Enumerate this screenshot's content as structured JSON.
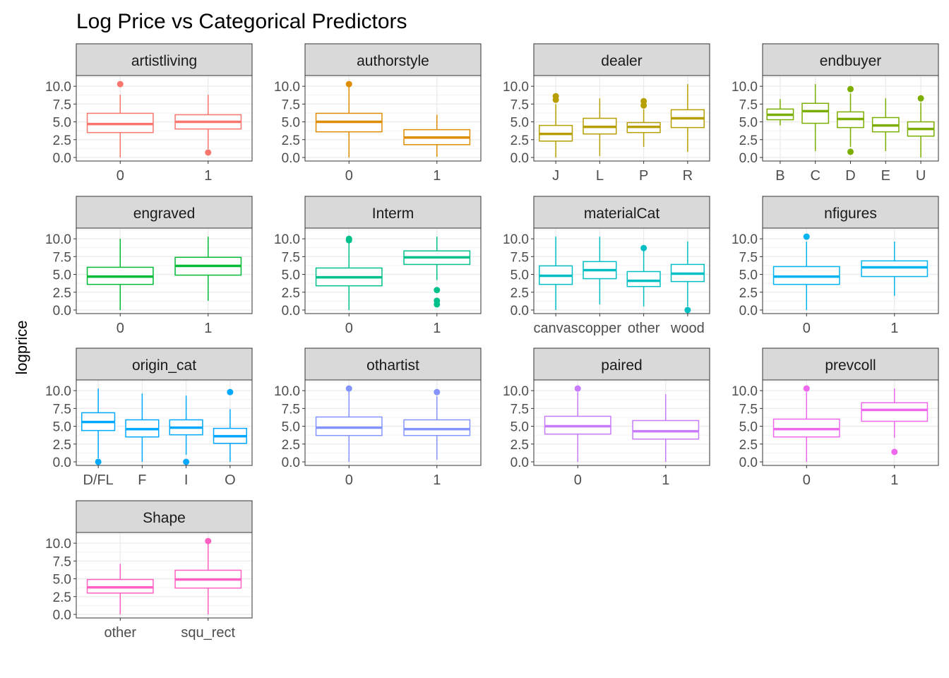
{
  "chart_data": {
    "type": "boxplot",
    "title": "Log Price vs Categorical Predictors",
    "xlabel": "",
    "ylabel": "logprice",
    "ylim": [
      -0.5,
      11.5
    ],
    "yticks": [
      0.0,
      2.5,
      5.0,
      7.5,
      10.0
    ],
    "ytick_labels": [
      "0.0",
      "2.5",
      "5.0",
      "7.5",
      "10.0"
    ],
    "grid": true,
    "legend": "none",
    "panels": [
      {
        "name": "artistliving",
        "color": "#F8766D",
        "categories": [
          "0",
          "1"
        ],
        "boxes": [
          {
            "min": 0.0,
            "q1": 3.5,
            "median": 4.7,
            "q3": 6.2,
            "max": 8.8,
            "outliers": [
              10.3
            ]
          },
          {
            "min": 1.2,
            "q1": 4.0,
            "median": 5.0,
            "q3": 6.0,
            "max": 8.8,
            "outliers": [
              0.7
            ]
          }
        ]
      },
      {
        "name": "authorstyle",
        "color": "#DE8C00",
        "categories": [
          "0",
          "1"
        ],
        "boxes": [
          {
            "min": 0.0,
            "q1": 3.6,
            "median": 5.0,
            "q3": 6.2,
            "max": 9.9,
            "outliers": [
              10.3
            ]
          },
          {
            "min": 0.1,
            "q1": 1.8,
            "median": 2.8,
            "q3": 3.9,
            "max": 6.0,
            "outliers": []
          }
        ]
      },
      {
        "name": "dealer",
        "color": "#B79F00",
        "categories": [
          "J",
          "L",
          "P",
          "R"
        ],
        "boxes": [
          {
            "min": 0.0,
            "q1": 2.3,
            "median": 3.3,
            "q3": 4.5,
            "max": 7.5,
            "outliers": [
              8.1,
              8.6
            ]
          },
          {
            "min": 0.2,
            "q1": 3.3,
            "median": 4.3,
            "q3": 5.5,
            "max": 8.3,
            "outliers": []
          },
          {
            "min": 1.5,
            "q1": 3.5,
            "median": 4.3,
            "q3": 4.9,
            "max": 6.8,
            "outliers": [
              7.3,
              7.9
            ]
          },
          {
            "min": 0.8,
            "q1": 4.2,
            "median": 5.5,
            "q3": 6.7,
            "max": 10.3,
            "outliers": []
          }
        ]
      },
      {
        "name": "endbuyer",
        "color": "#7CAE00",
        "categories": [
          "B",
          "C",
          "D",
          "E",
          "U"
        ],
        "boxes": [
          {
            "min": 4.5,
            "q1": 5.3,
            "median": 6.0,
            "q3": 6.8,
            "max": 8.2,
            "outliers": []
          },
          {
            "min": 0.9,
            "q1": 4.8,
            "median": 6.5,
            "q3": 7.6,
            "max": 10.3,
            "outliers": []
          },
          {
            "min": 1.5,
            "q1": 4.2,
            "median": 5.4,
            "q3": 6.4,
            "max": 9.0,
            "outliers": [
              9.6,
              0.8
            ]
          },
          {
            "min": 0.9,
            "q1": 3.6,
            "median": 4.5,
            "q3": 5.6,
            "max": 8.3,
            "outliers": []
          },
          {
            "min": 0.0,
            "q1": 3.0,
            "median": 4.0,
            "q3": 5.0,
            "max": 7.7,
            "outliers": [
              8.3
            ]
          }
        ]
      },
      {
        "name": "engraved",
        "color": "#00BA38",
        "categories": [
          "0",
          "1"
        ],
        "boxes": [
          {
            "min": 0.0,
            "q1": 3.6,
            "median": 4.7,
            "q3": 6.0,
            "max": 10.0,
            "outliers": []
          },
          {
            "min": 1.3,
            "q1": 4.9,
            "median": 6.2,
            "q3": 7.4,
            "max": 10.3,
            "outliers": []
          }
        ]
      },
      {
        "name": "Interm",
        "color": "#00C08B",
        "categories": [
          "0",
          "1"
        ],
        "boxes": [
          {
            "min": 0.0,
            "q1": 3.4,
            "median": 4.6,
            "q3": 5.9,
            "max": 9.5,
            "outliers": [
              9.8,
              10.0
            ]
          },
          {
            "min": 4.2,
            "q1": 6.4,
            "median": 7.4,
            "q3": 8.3,
            "max": 10.3,
            "outliers": [
              2.8,
              1.3,
              0.8
            ]
          }
        ]
      },
      {
        "name": "materialCat",
        "color": "#00BFC4",
        "categories": [
          "canvas",
          "copper",
          "other",
          "wood"
        ],
        "boxes": [
          {
            "min": 0.0,
            "q1": 3.6,
            "median": 4.8,
            "q3": 6.2,
            "max": 10.3,
            "outliers": []
          },
          {
            "min": 0.8,
            "q1": 4.4,
            "median": 5.6,
            "q3": 6.8,
            "max": 10.3,
            "outliers": []
          },
          {
            "min": 0.5,
            "q1": 3.3,
            "median": 4.1,
            "q3": 5.4,
            "max": 8.3,
            "outliers": [
              8.7
            ]
          },
          {
            "min": 0.5,
            "q1": 4.0,
            "median": 5.1,
            "q3": 6.4,
            "max": 9.6,
            "outliers": [
              0.0
            ]
          }
        ]
      },
      {
        "name": "nfigures",
        "color": "#00B4F0",
        "categories": [
          "0",
          "1"
        ],
        "boxes": [
          {
            "min": 0.0,
            "q1": 3.6,
            "median": 4.7,
            "q3": 6.1,
            "max": 9.6,
            "outliers": [
              10.3
            ]
          },
          {
            "min": 2.0,
            "q1": 4.7,
            "median": 6.0,
            "q3": 6.9,
            "max": 9.6,
            "outliers": []
          }
        ]
      },
      {
        "name": "origin_cat",
        "color": "#00A9FF",
        "categories": [
          "D/FL",
          "F",
          "I",
          "O"
        ],
        "boxes": [
          {
            "min": 0.5,
            "q1": 4.4,
            "median": 5.6,
            "q3": 6.9,
            "max": 10.3,
            "outliers": [
              0.0
            ]
          },
          {
            "min": 0.0,
            "q1": 3.5,
            "median": 4.6,
            "q3": 5.9,
            "max": 9.6,
            "outliers": []
          },
          {
            "min": 1.0,
            "q1": 3.8,
            "median": 4.8,
            "q3": 5.9,
            "max": 9.3,
            "outliers": [
              0.0
            ]
          },
          {
            "min": 0.0,
            "q1": 2.6,
            "median": 3.6,
            "q3": 4.7,
            "max": 7.4,
            "outliers": [
              9.8
            ]
          }
        ]
      },
      {
        "name": "othartist",
        "color": "#8494FF",
        "categories": [
          "0",
          "1"
        ],
        "boxes": [
          {
            "min": 0.0,
            "q1": 3.7,
            "median": 4.8,
            "q3": 6.3,
            "max": 9.9,
            "outliers": [
              10.3
            ]
          },
          {
            "min": 0.3,
            "q1": 3.7,
            "median": 4.6,
            "q3": 5.9,
            "max": 9.2,
            "outliers": [
              9.8
            ]
          }
        ]
      },
      {
        "name": "paired",
        "color": "#C77CFF",
        "categories": [
          "0",
          "1"
        ],
        "boxes": [
          {
            "min": 0.0,
            "q1": 3.9,
            "median": 5.0,
            "q3": 6.4,
            "max": 9.8,
            "outliers": [
              10.3
            ]
          },
          {
            "min": 0.0,
            "q1": 3.2,
            "median": 4.3,
            "q3": 5.8,
            "max": 9.5,
            "outliers": []
          }
        ]
      },
      {
        "name": "prevcoll",
        "color": "#ED68ED",
        "categories": [
          "0",
          "1"
        ],
        "boxes": [
          {
            "min": 0.0,
            "q1": 3.5,
            "median": 4.6,
            "q3": 6.0,
            "max": 9.8,
            "outliers": [
              10.3
            ]
          },
          {
            "min": 3.4,
            "q1": 5.7,
            "median": 7.3,
            "q3": 8.3,
            "max": 10.3,
            "outliers": [
              1.4
            ]
          }
        ]
      },
      {
        "name": "Shape",
        "color": "#FF61C3",
        "categories": [
          "other",
          "squ_rect"
        ],
        "boxes": [
          {
            "min": 0.0,
            "q1": 3.0,
            "median": 3.8,
            "q3": 4.9,
            "max": 7.1,
            "outliers": []
          },
          {
            "min": 0.0,
            "q1": 3.7,
            "median": 4.9,
            "q3": 6.2,
            "max": 9.9,
            "outliers": [
              10.3
            ]
          }
        ]
      }
    ]
  }
}
